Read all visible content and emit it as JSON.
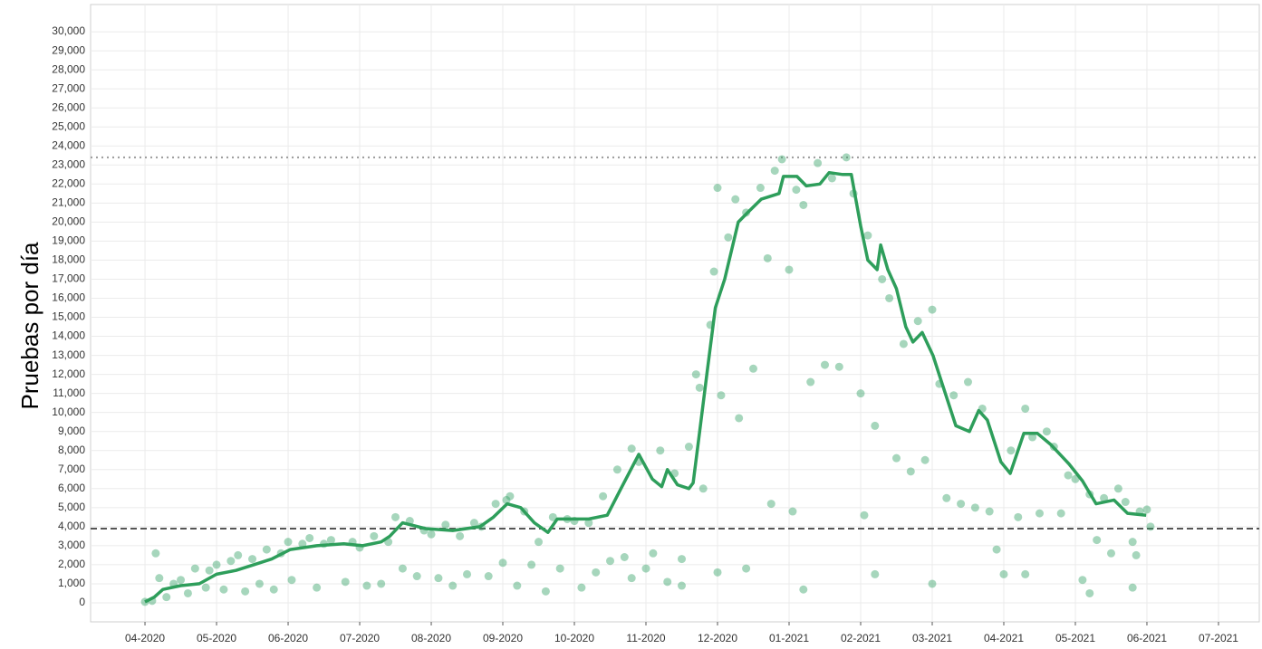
{
  "chart_data": {
    "type": "scatter",
    "ylabel": "Pruebas por día",
    "xlim": [
      -0.76,
      15.57
    ],
    "ylim": [
      -1000,
      31430
    ],
    "grid": true,
    "xticks": [
      {
        "value": 0,
        "label": "04-2020"
      },
      {
        "value": 1,
        "label": "05-2020"
      },
      {
        "value": 2,
        "label": "06-2020"
      },
      {
        "value": 3,
        "label": "07-2020"
      },
      {
        "value": 4,
        "label": "08-2020"
      },
      {
        "value": 5,
        "label": "09-2020"
      },
      {
        "value": 6,
        "label": "10-2020"
      },
      {
        "value": 7,
        "label": "11-2020"
      },
      {
        "value": 8,
        "label": "12-2020"
      },
      {
        "value": 9,
        "label": "01-2021"
      },
      {
        "value": 10,
        "label": "02-2021"
      },
      {
        "value": 11,
        "label": "03-2021"
      },
      {
        "value": 12,
        "label": "04-2021"
      },
      {
        "value": 13,
        "label": "05-2021"
      },
      {
        "value": 14,
        "label": "06-2021"
      },
      {
        "value": 15,
        "label": "07-2021"
      }
    ],
    "yticks": [
      0,
      {
        "value": 1000,
        "label": "1,000"
      },
      {
        "value": 2000,
        "label": "2,000"
      },
      {
        "value": 3000,
        "label": "3,000"
      },
      {
        "value": 4000,
        "label": "4,000"
      },
      {
        "value": 5000,
        "label": "5,000"
      },
      {
        "value": 6000,
        "label": "6,000"
      },
      {
        "value": 7000,
        "label": "7,000"
      },
      {
        "value": 8000,
        "label": "8,000"
      },
      {
        "value": 9000,
        "label": "9,000"
      },
      {
        "value": 10000,
        "label": "10,000"
      },
      {
        "value": 11000,
        "label": "11,000"
      },
      {
        "value": 12000,
        "label": "12,000"
      },
      {
        "value": 13000,
        "label": "13,000"
      },
      {
        "value": 14000,
        "label": "14,000"
      },
      {
        "value": 15000,
        "label": "15,000"
      },
      {
        "value": 16000,
        "label": "16,000"
      },
      {
        "value": 17000,
        "label": "17,000"
      },
      {
        "value": 18000,
        "label": "18,000"
      },
      {
        "value": 19000,
        "label": "19,000"
      },
      {
        "value": 20000,
        "label": "20,000"
      },
      {
        "value": 21000,
        "label": "21,000"
      },
      {
        "value": 22000,
        "label": "22,000"
      },
      {
        "value": 23000,
        "label": "23,000"
      },
      {
        "value": 24000,
        "label": "24,000"
      },
      {
        "value": 25000,
        "label": "25,000"
      },
      {
        "value": 26000,
        "label": "26,000"
      },
      {
        "value": 27000,
        "label": "27,000"
      },
      {
        "value": 28000,
        "label": "28,000"
      },
      {
        "value": 29000,
        "label": "29,000"
      },
      {
        "value": 30000,
        "label": "30,000"
      }
    ],
    "reference_lines": [
      {
        "value": 23400,
        "style": "dotted",
        "color": "#9a9a9a"
      },
      {
        "value": 3900,
        "style": "dashed",
        "color": "#555555"
      }
    ],
    "series": [
      {
        "type": "scatter",
        "color": "#3aa36b",
        "x": [
          0,
          0.1,
          0.15,
          0.2,
          0.3,
          0.4,
          0.5,
          0.6,
          0.7,
          0.85,
          0.9,
          1.0,
          1.1,
          1.2,
          1.3,
          1.4,
          1.5,
          1.6,
          1.7,
          1.8,
          1.9,
          2.0,
          2.05,
          2.2,
          2.3,
          2.4,
          2.5,
          2.6,
          2.8,
          2.9,
          3.0,
          3.1,
          3.2,
          3.3,
          3.4,
          3.5,
          3.6,
          3.7,
          3.8,
          3.9,
          4.0,
          4.1,
          4.2,
          4.3,
          4.4,
          4.5,
          4.6,
          4.7,
          4.8,
          4.9,
          5.0,
          5.05,
          5.1,
          5.2,
          5.3,
          5.4,
          5.5,
          5.6,
          5.7,
          5.8,
          5.9,
          6.0,
          6.1,
          6.2,
          6.3,
          6.4,
          6.5,
          6.6,
          6.7,
          6.8,
          6.9,
          7.0,
          7.1,
          7.2,
          7.3,
          7.4,
          7.5,
          7.6,
          7.7,
          7.75,
          7.8,
          7.9,
          7.95,
          8.0,
          8.05,
          8.15,
          8.25,
          8.3,
          8.4,
          8.5,
          8.6,
          8.7,
          8.75,
          8.8,
          8.9,
          9.0,
          9.05,
          9.1,
          9.2,
          9.3,
          9.4,
          9.5,
          9.6,
          9.7,
          9.8,
          9.9,
          10.0,
          10.05,
          10.1,
          10.2,
          10.3,
          10.4,
          10.5,
          10.6,
          10.7,
          10.8,
          10.9,
          11.0,
          11.1,
          11.2,
          11.3,
          11.4,
          11.5,
          11.6,
          11.7,
          11.8,
          11.9,
          12.0,
          12.1,
          12.2,
          12.3,
          12.4,
          12.5,
          12.6,
          12.7,
          12.8,
          12.9,
          13.0,
          13.1,
          13.2,
          13.3,
          13.4,
          13.5,
          13.6,
          13.7,
          13.8,
          13.9,
          14.0,
          14.05,
          13.85,
          8.0,
          8.4,
          9.2,
          10.2,
          11.0,
          12.3,
          13.8,
          13.2,
          6.8,
          7.5
        ],
        "values": [
          50,
          100,
          2600,
          1300,
          300,
          1000,
          1200,
          500,
          1800,
          800,
          1700,
          2000,
          700,
          2200,
          2500,
          600,
          2300,
          1000,
          2800,
          700,
          2600,
          3200,
          1200,
          3100,
          3400,
          800,
          3100,
          3300,
          1100,
          3200,
          2900,
          900,
          3500,
          1000,
          3200,
          4500,
          1800,
          4300,
          1400,
          3800,
          3600,
          1300,
          4100,
          900,
          3500,
          1500,
          4200,
          4000,
          1400,
          5200,
          2100,
          5400,
          5600,
          900,
          4800,
          2000,
          3200,
          600,
          4500,
          1800,
          4400,
          4300,
          800,
          4200,
          1600,
          5600,
          2200,
          7000,
          2400,
          8100,
          7400,
          1800,
          2600,
          8000,
          1100,
          6800,
          2300,
          8200,
          12000,
          11300,
          6000,
          14600,
          17400,
          21800,
          10900,
          19200,
          21200,
          9700,
          20500,
          12300,
          21800,
          18100,
          5200,
          22700,
          23300,
          17500,
          4800,
          21700,
          20900,
          11600,
          23100,
          12500,
          22300,
          12400,
          23400,
          21500,
          11000,
          4600,
          19300,
          9300,
          17000,
          16000,
          7600,
          13600,
          6900,
          14800,
          7500,
          15400,
          11500,
          5500,
          10900,
          5200,
          11600,
          5000,
          10200,
          4800,
          2800,
          1500,
          8000,
          4500,
          10200,
          8700,
          4700,
          9000,
          8200,
          4700,
          6700,
          6500,
          1200,
          5700,
          3300,
          5500,
          2600,
          6000,
          5300,
          3200,
          4800,
          4900,
          4000,
          2500,
          1600,
          1800,
          700,
          1500,
          1000,
          1500,
          800,
          500,
          1300,
          900
        ]
      },
      {
        "type": "line",
        "color": "#2e9e5b",
        "x": [
          0,
          0.13,
          0.25,
          0.5,
          0.76,
          1.0,
          1.27,
          1.52,
          1.77,
          2.03,
          2.4,
          2.78,
          3.04,
          3.3,
          3.42,
          3.6,
          3.92,
          4.3,
          4.68,
          4.87,
          5.06,
          5.25,
          5.44,
          5.63,
          5.76,
          6.2,
          6.46,
          6.65,
          6.9,
          7.09,
          7.22,
          7.3,
          7.44,
          7.6,
          7.66,
          7.75,
          7.85,
          7.97,
          8.1,
          8.29,
          8.42,
          8.61,
          8.86,
          8.92,
          9.11,
          9.24,
          9.43,
          9.56,
          9.75,
          9.87,
          10.0,
          10.1,
          10.23,
          10.28,
          10.38,
          10.5,
          10.63,
          10.73,
          10.86,
          11.01,
          11.14,
          11.33,
          11.52,
          11.65,
          11.77,
          11.96,
          12.09,
          12.28,
          12.47,
          12.66,
          12.91,
          13.1,
          13.29,
          13.54,
          13.73,
          13.99
        ],
        "values": [
          50,
          300,
          700,
          900,
          1000,
          1500,
          1700,
          2000,
          2300,
          2800,
          3000,
          3100,
          3000,
          3200,
          3500,
          4200,
          3900,
          3800,
          4000,
          4500,
          5200,
          5000,
          4200,
          3700,
          4400,
          4400,
          4600,
          6000,
          7800,
          6500,
          6100,
          7000,
          6200,
          6000,
          6300,
          9000,
          12000,
          15500,
          17000,
          20000,
          20500,
          21200,
          21500,
          22400,
          22400,
          21900,
          22000,
          22600,
          22500,
          22500,
          19800,
          18000,
          17500,
          18800,
          17500,
          16500,
          14500,
          13700,
          14200,
          13000,
          11500,
          9300,
          9000,
          10100,
          9600,
          7400,
          6800,
          8900,
          8900,
          8300,
          7300,
          6400,
          5200,
          5400,
          4700,
          4600
        ]
      }
    ]
  }
}
